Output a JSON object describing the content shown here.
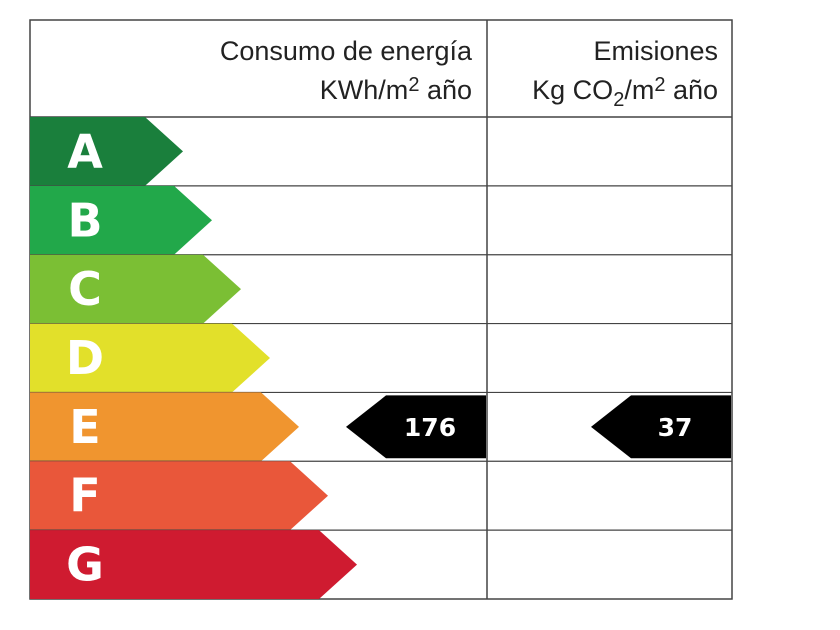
{
  "header": {
    "consumo_title": "Consumo de energía",
    "consumo_unit_a": "KWh/m",
    "consumo_unit_sup": "2",
    "consumo_unit_b": " año",
    "emisiones_title": "Emisiones",
    "emisiones_unit_a": "Kg CO",
    "emisiones_unit_sub": "2",
    "emisiones_unit_b": "/m",
    "emisiones_unit_sup": "2",
    "emisiones_unit_c": " año"
  },
  "classes": [
    {
      "letter": "A",
      "color": "#1a7f3c"
    },
    {
      "letter": "B",
      "color": "#22a84a"
    },
    {
      "letter": "C",
      "color": "#7bbf34"
    },
    {
      "letter": "D",
      "color": "#e2e02a"
    },
    {
      "letter": "E",
      "color": "#f0952f"
    },
    {
      "letter": "F",
      "color": "#e9573a"
    },
    {
      "letter": "G",
      "color": "#cf1b30"
    }
  ],
  "consumo": {
    "rating": "E",
    "value": "176"
  },
  "emisiones": {
    "rating": "E",
    "value": "37"
  },
  "marker_color": "#000000"
}
